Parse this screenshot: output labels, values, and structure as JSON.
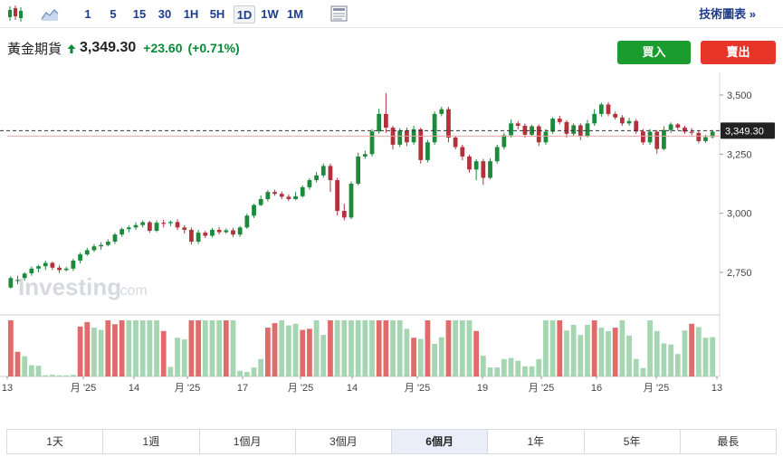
{
  "toolbar": {
    "timeframes": [
      "1",
      "5",
      "15",
      "30",
      "1H",
      "5H",
      "1D",
      "1W",
      "1M"
    ],
    "active_timeframe": "1D",
    "tech_chart_link": "技術圖表 »",
    "icons": [
      "candlestick-icon",
      "area-chart-icon",
      "layout-icon"
    ]
  },
  "quote": {
    "name": "黃金期貨",
    "price": "3,349.30",
    "change": "+23.60",
    "change_pct": "(+0.71%)",
    "direction": "up"
  },
  "buttons": {
    "buy": "買入",
    "sell": "賣出"
  },
  "watermark": {
    "text": "Investing",
    "suffix": ".com"
  },
  "chart_data": {
    "type": "candlestick",
    "y_ticks": [
      "3,500",
      "3,250",
      "3,000",
      "2,750"
    ],
    "ylim": [
      2600,
      3550
    ],
    "current_price_label": "3,349.30",
    "current_price": 3349.3,
    "x_tick_labels": [
      "13",
      "月 '25",
      "14",
      "月 '25",
      "17",
      "月 '25",
      "14",
      "月 '25",
      "19",
      "月 '25",
      "16",
      "月 '25",
      "13"
    ],
    "colors": {
      "up": "#1c8a3a",
      "down": "#b2313a",
      "vol_up": "#a5d6b1",
      "vol_down": "#e06b6b",
      "price_line": "#333333",
      "ref_line": "#f0a3a3"
    },
    "candles": [
      [
        2686,
        2726,
        2681,
        2734,
        100
      ],
      [
        2715,
        2718,
        2700,
        2736,
        44
      ],
      [
        2726,
        2745,
        2715,
        2750,
        -36
      ],
      [
        2746,
        2766,
        2736,
        2775,
        -20
      ],
      [
        2766,
        2776,
        2750,
        2782,
        -19
      ],
      [
        2776,
        2790,
        2760,
        2800,
        -2
      ],
      [
        2790,
        2770,
        2760,
        2796,
        -3
      ],
      [
        2770,
        2760,
        2747,
        2780,
        -2
      ],
      [
        2760,
        2766,
        2754,
        2774,
        -2
      ],
      [
        2766,
        2800,
        2756,
        2808,
        -3
      ],
      [
        2800,
        2826,
        2788,
        2834,
        89
      ],
      [
        2826,
        2844,
        2820,
        2854,
        97
      ],
      [
        2844,
        2860,
        2836,
        2870,
        -87
      ],
      [
        2860,
        2866,
        2846,
        2878,
        -83
      ],
      [
        2866,
        2880,
        2860,
        2890,
        100
      ],
      [
        2880,
        2910,
        2870,
        2918,
        93
      ],
      [
        2910,
        2933,
        2900,
        2940,
        100
      ],
      [
        2933,
        2940,
        2920,
        2948,
        -100
      ],
      [
        2940,
        2950,
        2930,
        2962,
        -100
      ],
      [
        2950,
        2962,
        2940,
        2970,
        -100
      ],
      [
        2962,
        2926,
        2918,
        2968,
        -100
      ],
      [
        2926,
        2960,
        2920,
        2970,
        -100
      ],
      [
        2960,
        2958,
        2940,
        2972,
        81
      ],
      [
        2958,
        2963,
        2946,
        2970,
        -17
      ],
      [
        2963,
        2940,
        2930,
        2975,
        -69
      ],
      [
        2940,
        2930,
        2914,
        2950,
        -66
      ],
      [
        2930,
        2880,
        2868,
        2940,
        100
      ],
      [
        2880,
        2918,
        2870,
        2930,
        100
      ],
      [
        2918,
        2905,
        2896,
        2926,
        -100
      ],
      [
        2905,
        2930,
        2898,
        2938,
        -100
      ],
      [
        2930,
        2920,
        2910,
        2942,
        -100
      ],
      [
        2920,
        2928,
        2914,
        2936,
        100
      ],
      [
        2928,
        2910,
        2900,
        2938,
        -100
      ],
      [
        2910,
        2940,
        2900,
        2946,
        -10
      ],
      [
        2940,
        2990,
        2934,
        2998,
        -8
      ],
      [
        2990,
        3035,
        2980,
        3040,
        -16
      ],
      [
        3035,
        3060,
        3030,
        3075,
        -31
      ],
      [
        3060,
        3090,
        3050,
        3098,
        87
      ],
      [
        3090,
        3082,
        3074,
        3100,
        95
      ],
      [
        3082,
        3070,
        3060,
        3092,
        -100
      ],
      [
        3070,
        3060,
        3052,
        3080,
        -91
      ],
      [
        3060,
        3072,
        3055,
        3090,
        -94
      ],
      [
        3072,
        3110,
        3066,
        3118,
        83
      ],
      [
        3110,
        3140,
        3100,
        3148,
        85
      ],
      [
        3140,
        3160,
        3130,
        3174,
        -100
      ],
      [
        3160,
        3200,
        3150,
        3210,
        -74
      ],
      [
        3200,
        3140,
        3090,
        3210,
        100
      ],
      [
        3140,
        3010,
        2990,
        3150,
        -100
      ],
      [
        3010,
        2982,
        2970,
        3040,
        -100
      ],
      [
        2982,
        3125,
        2975,
        3135,
        -100
      ],
      [
        3125,
        3240,
        3118,
        3256,
        -100
      ],
      [
        3240,
        3250,
        3230,
        3265,
        -100
      ],
      [
        3250,
        3346,
        3240,
        3356,
        -100
      ],
      [
        3346,
        3420,
        3336,
        3442,
        100
      ],
      [
        3420,
        3362,
        3340,
        3508,
        100
      ],
      [
        3362,
        3290,
        3270,
        3370,
        -100
      ],
      [
        3290,
        3350,
        3280,
        3360,
        -100
      ],
      [
        3350,
        3300,
        3284,
        3362,
        -85
      ],
      [
        3300,
        3355,
        3290,
        3370,
        69
      ],
      [
        3355,
        3225,
        3210,
        3362,
        -67
      ],
      [
        3225,
        3300,
        3215,
        3310,
        100
      ],
      [
        3300,
        3420,
        3290,
        3430,
        -58
      ],
      [
        3420,
        3440,
        3410,
        3450,
        -70
      ],
      [
        3440,
        3320,
        3300,
        3450,
        100
      ],
      [
        3320,
        3280,
        3270,
        3328,
        -100
      ],
      [
        3280,
        3240,
        3225,
        3290,
        -100
      ],
      [
        3240,
        3185,
        3172,
        3248,
        -100
      ],
      [
        3185,
        3220,
        3140,
        3228,
        81
      ],
      [
        3220,
        3150,
        3120,
        3230,
        -37
      ],
      [
        3150,
        3220,
        3144,
        3232,
        -16
      ],
      [
        3220,
        3280,
        3210,
        3290,
        -16
      ],
      [
        3280,
        3330,
        3270,
        3340,
        -31
      ],
      [
        3330,
        3380,
        3320,
        3396,
        -33
      ],
      [
        3380,
        3370,
        3355,
        3390,
        -28
      ],
      [
        3370,
        3332,
        3320,
        3380,
        -18
      ],
      [
        3332,
        3368,
        3326,
        3375,
        -18
      ],
      [
        3368,
        3300,
        3285,
        3376,
        -31
      ],
      [
        3300,
        3345,
        3290,
        3356,
        -100
      ],
      [
        3345,
        3400,
        3336,
        3406,
        -100
      ],
      [
        3400,
        3386,
        3376,
        3412,
        100
      ],
      [
        3386,
        3336,
        3320,
        3394,
        -82
      ],
      [
        3336,
        3372,
        3325,
        3380,
        -92
      ],
      [
        3372,
        3326,
        3310,
        3380,
        -74
      ],
      [
        3326,
        3380,
        3320,
        3395,
        -92
      ],
      [
        3380,
        3420,
        3370,
        3440,
        100
      ],
      [
        3420,
        3460,
        3408,
        3468,
        -87
      ],
      [
        3460,
        3420,
        3410,
        3470,
        -81
      ],
      [
        3420,
        3405,
        3396,
        3430,
        87
      ],
      [
        3405,
        3380,
        3370,
        3415,
        -100
      ],
      [
        3380,
        3390,
        3370,
        3404,
        -73
      ],
      [
        3390,
        3346,
        3336,
        3398,
        -31
      ],
      [
        3346,
        3300,
        3290,
        3356,
        -15
      ],
      [
        3300,
        3345,
        3290,
        3356,
        -100
      ],
      [
        3345,
        3272,
        3252,
        3352,
        -81
      ],
      [
        3272,
        3352,
        3266,
        3368,
        -59
      ],
      [
        3352,
        3376,
        3340,
        3384,
        -57
      ],
      [
        3376,
        3362,
        3352,
        3382,
        -40
      ],
      [
        3362,
        3345,
        3336,
        3370,
        -82
      ],
      [
        3345,
        3340,
        3330,
        3360,
        94
      ],
      [
        3340,
        3305,
        3296,
        3350,
        -88
      ],
      [
        3305,
        3322,
        3298,
        3332,
        -69
      ],
      [
        3322,
        3345,
        3316,
        3352,
        -70
      ]
    ]
  },
  "range_tabs": [
    "1天",
    "1週",
    "1個月",
    "3個月",
    "6個月",
    "1年",
    "5年",
    "最長"
  ],
  "active_range": "6個月"
}
